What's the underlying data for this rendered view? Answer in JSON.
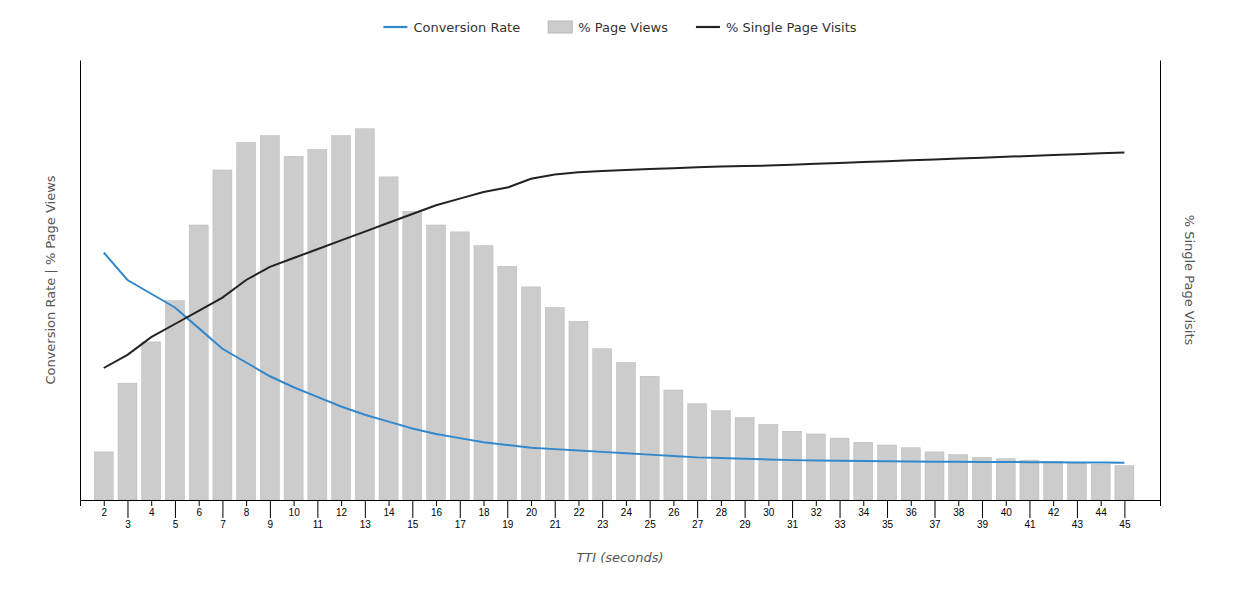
{
  "chart_data": {
    "type": "bar",
    "x_label": "TTI (seconds)",
    "y_label": "Conversion Rate | % Page Views",
    "y2_label": "% Single Page Visits",
    "x": [
      2,
      3,
      4,
      5,
      6,
      7,
      8,
      9,
      10,
      11,
      12,
      13,
      14,
      15,
      16,
      17,
      18,
      19,
      20,
      21,
      22,
      23,
      24,
      25,
      26,
      27,
      28,
      29,
      30,
      31,
      32,
      33,
      34,
      35,
      36,
      37,
      38,
      39,
      40,
      41,
      42,
      43,
      44,
      45
    ],
    "series": [
      {
        "name": "Conversion Rate",
        "type": "line",
        "color": "#3388cc",
        "values": [
          18,
          16,
          15,
          14,
          12.5,
          11,
          10,
          9,
          8.2,
          7.5,
          6.8,
          6.2,
          5.7,
          5.2,
          4.8,
          4.5,
          4.2,
          4.0,
          3.8,
          3.7,
          3.6,
          3.5,
          3.4,
          3.3,
          3.2,
          3.1,
          3.05,
          3.0,
          2.95,
          2.9,
          2.88,
          2.85,
          2.83,
          2.82,
          2.8,
          2.79,
          2.78,
          2.77,
          2.76,
          2.75,
          2.74,
          2.73,
          2.72,
          2.71
        ]
      },
      {
        "name": "% Page Views",
        "type": "bar",
        "color": "#cccccc",
        "values": [
          3.5,
          8.5,
          11.5,
          14.5,
          20,
          24,
          26,
          26.5,
          25,
          25.5,
          26.5,
          27,
          23.5,
          21,
          20,
          19.5,
          18.5,
          17,
          15.5,
          14,
          13,
          11,
          10,
          9,
          8,
          7,
          6.5,
          6,
          5.5,
          5,
          4.8,
          4.5,
          4.2,
          4,
          3.8,
          3.5,
          3.3,
          3.1,
          3.0,
          2.9,
          2.8,
          2.7,
          2.6,
          2.5
        ]
      },
      {
        "name": "% Single Page Visits",
        "type": "line",
        "color": "#222222",
        "axis": "y2",
        "values": [
          30,
          33,
          37,
          40,
          43,
          46,
          50,
          53,
          55,
          57,
          59,
          61,
          63,
          65,
          67,
          68.5,
          70,
          71,
          73,
          74,
          74.5,
          74.8,
          75,
          75.2,
          75.4,
          75.6,
          75.8,
          75.9,
          76,
          76.2,
          76.4,
          76.6,
          76.8,
          77,
          77.2,
          77.4,
          77.6,
          77.8,
          78,
          78.2,
          78.4,
          78.6,
          78.8,
          79
        ]
      }
    ],
    "xlim": [
      1.0,
      46.5
    ],
    "xticks": [
      2,
      3,
      4,
      5,
      6,
      7,
      8,
      9,
      10,
      11,
      12,
      13,
      14,
      15,
      16,
      17,
      18,
      19,
      20,
      21,
      22,
      23,
      24,
      25,
      26,
      27,
      28,
      29,
      30,
      31,
      32,
      33,
      34,
      35,
      36,
      37,
      38,
      39,
      40,
      41,
      42,
      43,
      44,
      45
    ],
    "ylim": [
      0,
      32
    ],
    "y2lim": [
      0,
      100
    ],
    "tick_labels": "x",
    "grid": false,
    "legend": "top"
  }
}
